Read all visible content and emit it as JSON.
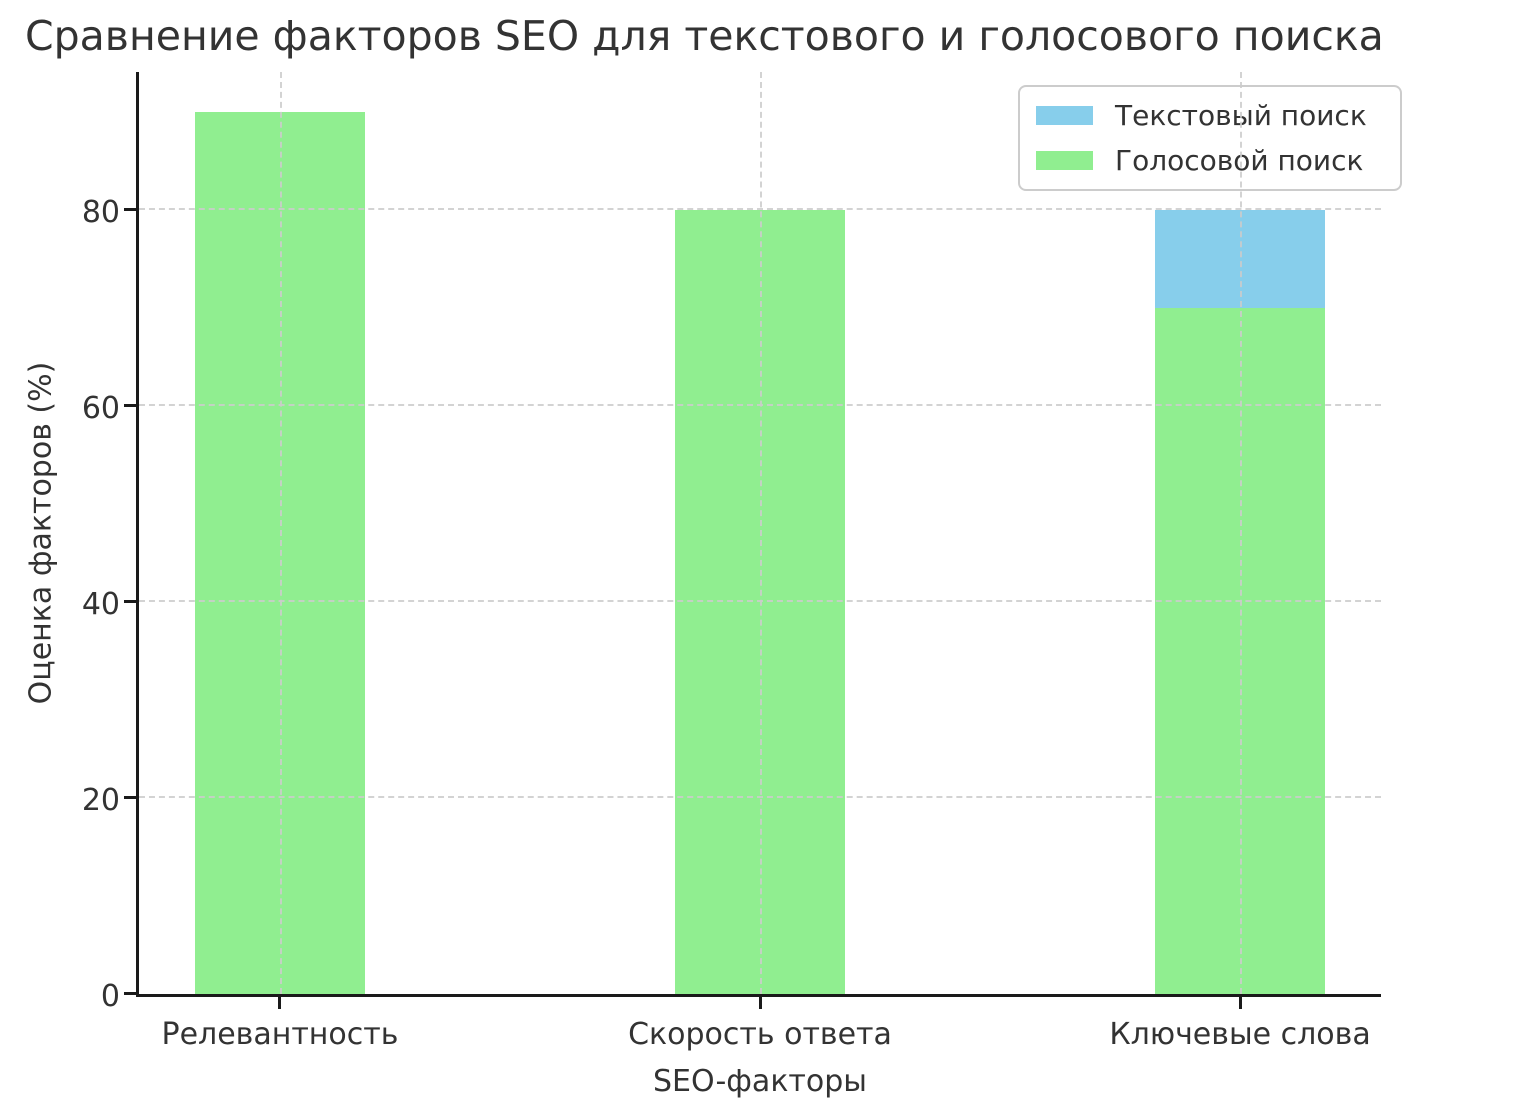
{
  "title": "Сравнение факторов SEO для текстового и голосового поиска",
  "chart_data": {
    "type": "bar",
    "mode": "overlapping",
    "title": "Сравнение факторов SEO для текстового и голосового поиска",
    "xlabel": "SEO-факторы",
    "ylabel": "Оценка факторов (%)",
    "categories": [
      "Релевантность",
      "Скорость ответа",
      "Ключевые слова"
    ],
    "series": [
      {
        "name": "Текстовый поиск",
        "color": "#87CEEB",
        "values": [
          null,
          null,
          80
        ],
        "note": "Bars for the first two categories are fully hidden behind the green bars; only the 80 bar at Ключевые слова is visible."
      },
      {
        "name": "Голосовой поиск",
        "color": "#90EE90",
        "values": [
          90,
          80,
          70
        ]
      }
    ],
    "ylim": [
      0,
      94.1
    ],
    "yticks": [
      0,
      20,
      40,
      60,
      80
    ],
    "grid": {
      "style": "dashed",
      "color": "#cccccc",
      "horizontal": true,
      "vertical_at_categories": true
    },
    "legend_position": "upper right"
  },
  "colors": {
    "background": "#ffffff",
    "text": "#333333",
    "spine": "#1a1a1a",
    "grid": "#cccccc",
    "text_search": "#87CEEB",
    "voice_search": "#90EE90"
  }
}
